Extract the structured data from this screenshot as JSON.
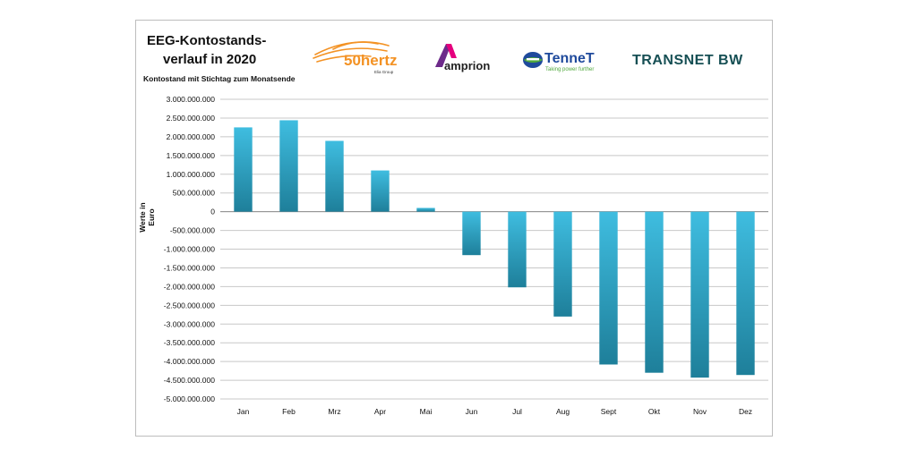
{
  "title_line1": "EEG-Kontostands-",
  "title_line2": "verlauf in 2020",
  "subtitle": "Kontostand mit Stichtag zum Monatsende",
  "logos": {
    "fiftyhertz": "50hertz",
    "fiftyhertz_sub": "Elia Group",
    "amprion": "amprion",
    "tennet": "TenneT",
    "tennet_tagline": "Taking power further",
    "transnet": "TRANSNET BW"
  },
  "colors": {
    "bar_top": "#3fbde0",
    "bar_bottom": "#1e7f9a",
    "grid": "#c8c8c8",
    "orange": "#f39224",
    "amprion_purple": "#6d2a8a",
    "amprion_pink": "#e5007e",
    "tennet_blue": "#1f4a9c",
    "tennet_green": "#4fa83d",
    "transnet_teal": "#164f54"
  },
  "chart_data": {
    "type": "bar",
    "title": "EEG-Kontostandsverlauf in 2020",
    "subtitle": "Kontostand mit Stichtag zum Monatsende",
    "ylabel": "Werte in Euro",
    "xlabel": "",
    "categories": [
      "Jan",
      "Feb",
      "Mrz",
      "Apr",
      "Mai",
      "Jun",
      "Jul",
      "Aug",
      "Sept",
      "Okt",
      "Nov",
      "Dez"
    ],
    "values": [
      2250000000,
      2440000000,
      1890000000,
      1100000000,
      100000000,
      -1160000000,
      -2020000000,
      -2800000000,
      -4080000000,
      -4300000000,
      -4430000000,
      -4360000000
    ],
    "ylim": [
      -5000000000,
      3000000000
    ],
    "yticks": [
      3000000000,
      2500000000,
      2000000000,
      1500000000,
      1000000000,
      500000000,
      0,
      -500000000,
      -1000000000,
      -1500000000,
      -2000000000,
      -2500000000,
      -3000000000,
      -3500000000,
      -4000000000,
      -4500000000,
      -5000000000
    ],
    "ytick_labels": [
      "3.000.000.000",
      "2.500.000.000",
      "2.000.000.000",
      "1.500.000.000",
      "1.000.000.000",
      "500.000.000",
      "0",
      "-500.000.000",
      "-1.000.000.000",
      "-1.500.000.000",
      "-2.000.000.000",
      "-2.500.000.000",
      "-3.000.000.000",
      "-3.500.000.000",
      "-4.000.000.000",
      "-4.500.000.000",
      "-5.000.000.000"
    ],
    "grid": true,
    "legend": "none"
  }
}
